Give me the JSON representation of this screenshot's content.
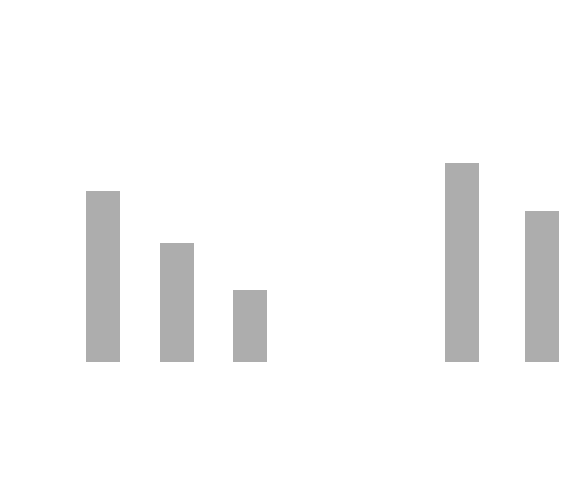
{
  "chart_data": {
    "type": "bar",
    "categories": [
      "",
      "",
      "",
      "",
      "",
      "",
      ""
    ],
    "values": [
      171,
      119,
      72,
      0,
      0,
      199,
      151
    ],
    "ylim": [
      0,
      362
    ],
    "grid": false,
    "legend": "none",
    "bar_color": "#adadad",
    "background": "#ffffff"
  }
}
